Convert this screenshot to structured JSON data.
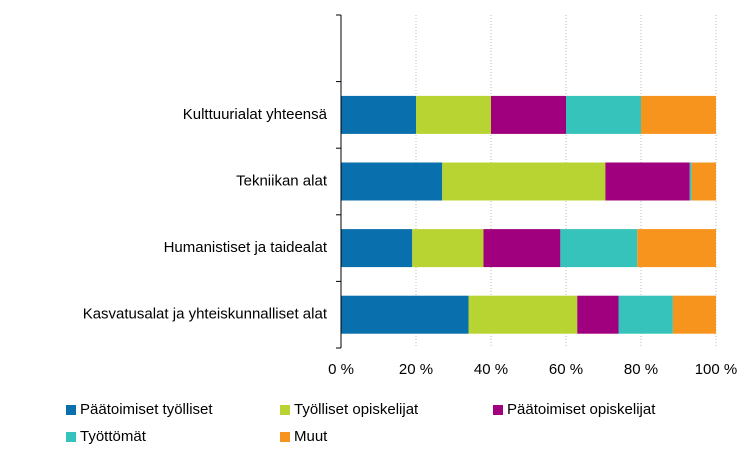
{
  "chart_data": {
    "type": "bar",
    "orientation": "horizontal",
    "stacked": true,
    "categories": [
      null,
      "Kulttuurialat yhteensä",
      "Tekniikan alat",
      "Humanistiset ja taidealat",
      "Kasvatusalat ja yhteiskunnalliset alat"
    ],
    "series": [
      {
        "name": "Päätoimiset työlliset",
        "color": "#0a6fad",
        "values": [
          null,
          20,
          27,
          19,
          34
        ]
      },
      {
        "name": "Työlliset opiskelijat",
        "color": "#b8d433",
        "values": [
          null,
          20,
          43.5,
          19,
          29
        ]
      },
      {
        "name": "Päätoimiset opiskelijat",
        "color": "#a0007e",
        "values": [
          null,
          20,
          22.5,
          20.5,
          11
        ]
      },
      {
        "name": "Työttömät",
        "color": "#36c3bb",
        "values": [
          null,
          20,
          0.5,
          20.5,
          14.5
        ]
      },
      {
        "name": "Muut",
        "color": "#f7941d",
        "values": [
          null,
          20,
          6.5,
          21,
          11.5
        ]
      }
    ],
    "xlim": [
      0,
      100
    ],
    "xticks": [
      {
        "value": 0,
        "label": "0 %"
      },
      {
        "value": 20,
        "label": "20 %"
      },
      {
        "value": 40,
        "label": "40 %"
      },
      {
        "value": 60,
        "label": "60 %"
      },
      {
        "value": 80,
        "label": "80 %"
      },
      {
        "value": 100,
        "label": "100 %"
      }
    ],
    "grid": true,
    "legend": "bottom"
  }
}
